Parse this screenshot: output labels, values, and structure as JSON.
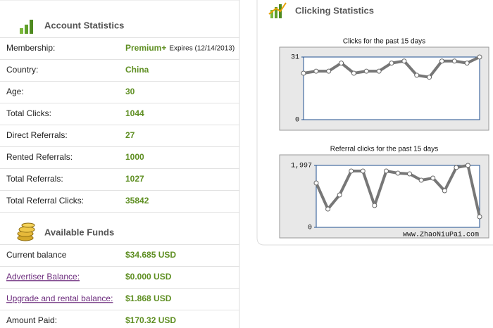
{
  "account": {
    "title": "Account Statistics",
    "rows": [
      {
        "label": "Membership:",
        "value": "Premium+",
        "note": "Expires (12/14/2013)"
      },
      {
        "label": "Country:",
        "value": "China"
      },
      {
        "label": "Age:",
        "value": "30"
      },
      {
        "label": "Total Clicks:",
        "value": "1044"
      },
      {
        "label": "Direct Referrals:",
        "value": "27"
      },
      {
        "label": "Rented Referrals:",
        "value": "1000"
      },
      {
        "label": "Total Referrals:",
        "value": "1027"
      },
      {
        "label": "Total Referral Clicks:",
        "value": "35842"
      }
    ]
  },
  "funds": {
    "title": "Available Funds",
    "rows": [
      {
        "label": "Current balance",
        "value": "$34.685 USD"
      },
      {
        "label": "Advertiser Balance:",
        "value": "$0.000 USD",
        "link": true
      },
      {
        "label": "Upgrade and rental balance:",
        "value": "$1.868 USD",
        "link": true
      },
      {
        "label": "Amount Paid:",
        "value": "$170.32 USD"
      }
    ]
  },
  "clicking": {
    "title": "Clicking Statistics",
    "watermark": "www.ZhaoNiuPai.com"
  },
  "chart_data": [
    {
      "type": "line",
      "title": "Clicks for the past 15 days",
      "values": [
        23,
        24,
        24,
        28,
        23,
        24,
        24,
        28,
        29,
        22,
        21,
        29,
        29,
        28,
        31
      ],
      "ylim": [
        0,
        31
      ],
      "yticks": [
        0,
        31
      ],
      "color": "#777777"
    },
    {
      "type": "line",
      "title": "Referral clicks for the past 15 days",
      "values": [
        1430,
        590,
        1044,
        1815,
        1815,
        703,
        1815,
        1747,
        1725,
        1520,
        1589,
        1180,
        1929,
        1997,
        340
      ],
      "ylim": [
        0,
        1997
      ],
      "yticks": [
        0,
        {
          "value": 1997,
          "label": "1,997"
        }
      ],
      "color": "#777777"
    }
  ]
}
